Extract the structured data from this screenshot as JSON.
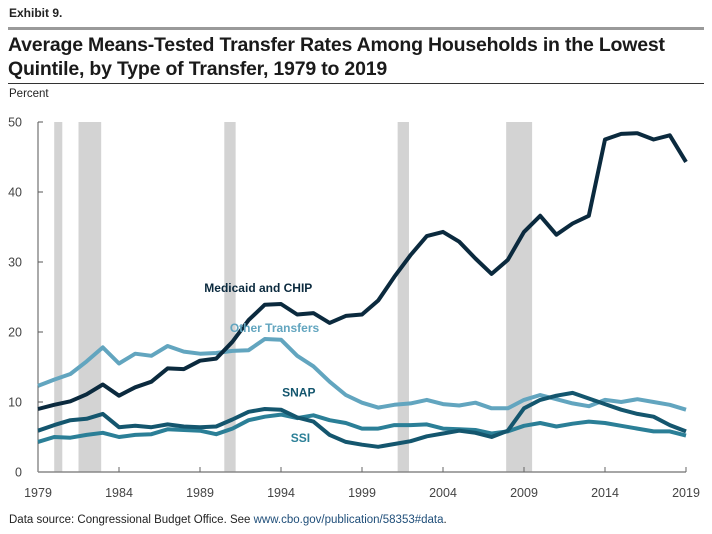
{
  "header": {
    "exhibit": "Exhibit 9.",
    "title_line1": "Average Means-Tested Transfer Rates Among Households in the Lowest",
    "title_line2": "Quintile, by Type of Transfer, 1979 to 2019",
    "unit": "Percent"
  },
  "footer": {
    "source_text": "Data source: Congressional Budget Office. See ",
    "link_text": "www.cbo.gov/publication/58353#data",
    "end": "."
  },
  "chart_data": {
    "type": "line",
    "title": "Average Means-Tested Transfer Rates Among Households in the Lowest Quintile, by Type of Transfer, 1979 to 2019",
    "xlabel": "",
    "ylabel": "Percent",
    "xlim": [
      1979,
      2019
    ],
    "ylim": [
      0,
      50
    ],
    "xticks": [
      1979,
      1984,
      1989,
      1994,
      1999,
      2004,
      2009,
      2014,
      2019
    ],
    "yticks": [
      0,
      10,
      20,
      30,
      40,
      50
    ],
    "grid": false,
    "legend": "inline-labels",
    "recessions": [
      [
        1980.0,
        1980.5
      ],
      [
        1981.5,
        1982.9
      ],
      [
        1990.5,
        1991.2
      ],
      [
        2001.2,
        2001.9
      ],
      [
        2007.9,
        2009.5
      ]
    ],
    "recession_color": "#d3d3d3",
    "x": [
      1979,
      1980,
      1981,
      1982,
      1983,
      1984,
      1985,
      1986,
      1987,
      1988,
      1989,
      1990,
      1991,
      1992,
      1993,
      1994,
      1995,
      1996,
      1997,
      1998,
      1999,
      2000,
      2001,
      2002,
      2003,
      2004,
      2005,
      2006,
      2007,
      2008,
      2009,
      2010,
      2011,
      2012,
      2013,
      2014,
      2015,
      2016,
      2017,
      2018,
      2019
    ],
    "series": [
      {
        "name": "Medicaid and CHIP",
        "color": "#0b2a3e",
        "values": [
          9.0,
          9.6,
          10.1,
          11.1,
          12.5,
          10.9,
          12.1,
          12.9,
          14.8,
          14.7,
          15.9,
          16.2,
          18.6,
          21.7,
          23.9,
          24.0,
          22.5,
          22.7,
          21.3,
          22.3,
          22.5,
          24.5,
          27.9,
          31.0,
          33.7,
          34.3,
          32.9,
          30.5,
          28.3,
          30.3,
          34.3,
          36.6,
          33.9,
          35.5,
          36.6,
          47.5,
          48.3,
          48.4,
          47.5,
          48.1,
          44.3
        ]
      },
      {
        "name": "Other Transfers",
        "color": "#62a5bf",
        "values": [
          12.3,
          13.2,
          14.0,
          15.8,
          17.8,
          15.5,
          16.9,
          16.6,
          18.0,
          17.2,
          16.9,
          17.0,
          17.3,
          17.4,
          19.0,
          18.9,
          16.6,
          15.1,
          12.9,
          11.0,
          9.9,
          9.2,
          9.6,
          9.8,
          10.3,
          9.7,
          9.5,
          9.9,
          9.1,
          9.1,
          10.3,
          11.0,
          10.4,
          9.8,
          9.4,
          10.3,
          10.0,
          10.4,
          10.0,
          9.6,
          8.9
        ]
      },
      {
        "name": "SNAP",
        "color": "#14566e",
        "values": [
          5.9,
          6.7,
          7.4,
          7.6,
          8.3,
          6.4,
          6.6,
          6.4,
          6.8,
          6.5,
          6.4,
          6.5,
          7.5,
          8.6,
          9.0,
          8.9,
          7.8,
          7.2,
          5.3,
          4.3,
          3.9,
          3.6,
          4.0,
          4.4,
          5.1,
          5.5,
          5.9,
          5.6,
          5.0,
          5.9,
          9.1,
          10.3,
          10.9,
          11.3,
          10.5,
          9.7,
          8.9,
          8.3,
          7.9,
          6.7,
          5.8
        ]
      },
      {
        "name": "SSI",
        "color": "#2b7f97",
        "values": [
          4.3,
          5.0,
          4.9,
          5.3,
          5.6,
          5.0,
          5.3,
          5.4,
          6.1,
          6.0,
          5.9,
          5.4,
          6.2,
          7.4,
          7.9,
          8.2,
          7.7,
          8.1,
          7.4,
          7.0,
          6.2,
          6.2,
          6.7,
          6.7,
          6.8,
          6.2,
          6.1,
          6.0,
          5.5,
          5.8,
          6.6,
          7.0,
          6.5,
          6.9,
          7.2,
          7.0,
          6.6,
          6.2,
          5.8,
          5.8,
          5.2
        ]
      }
    ],
    "annotations": [
      {
        "text": "Medicaid and CHIP",
        "x": 1992.6,
        "y": 25.7,
        "series": 0
      },
      {
        "text": "Other Transfers",
        "x": 1993.6,
        "y": 20.0,
        "series": 1
      },
      {
        "text": "SNAP",
        "x": 1995.1,
        "y": 10.8,
        "series": 2
      },
      {
        "text": "SSI",
        "x": 1995.2,
        "y": 4.3,
        "series": 3
      }
    ]
  }
}
